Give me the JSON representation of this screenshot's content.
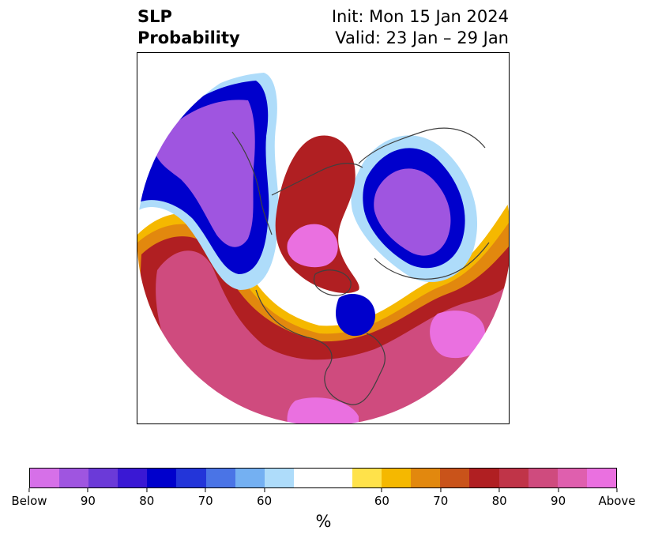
{
  "title": {
    "left_line1": "SLP",
    "left_line2": "Probability",
    "right_line1": "Init: Mon 15 Jan 2024",
    "right_line2": "Valid: 23 Jan – 29 Jan"
  },
  "colorbar": {
    "colors": [
      "#d670e8",
      "#9f55e0",
      "#6b3ad8",
      "#3a18d4",
      "#0000cc",
      "#2335d9",
      "#4a74e6",
      "#74b0f2",
      "#aedcfa",
      "#ffffff",
      "#ffffff",
      "#ffe24a",
      "#f5b800",
      "#e2880e",
      "#c9531a",
      "#b01f22",
      "#c03448",
      "#cf4b7e",
      "#df5fae",
      "#ea70e0"
    ],
    "tick_labels": [
      "Below",
      "90",
      "80",
      "70",
      "60",
      "60",
      "70",
      "80",
      "90",
      "Above"
    ],
    "unit": "%"
  },
  "map_colors": {
    "below_90": "#9f55e0",
    "below_80": "#0000cc",
    "below_60": "#aedcfa",
    "above_60": "#f5b800",
    "above_70": "#e2880e",
    "above_80": "#b01f22",
    "above_90": "#cf4b7e",
    "above_max": "#ea70e0",
    "coastline": "#404040"
  }
}
